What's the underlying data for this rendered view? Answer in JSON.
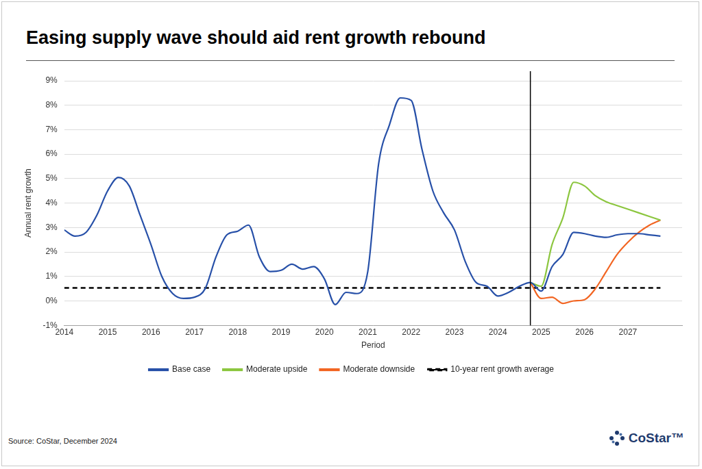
{
  "chart_data": {
    "type": "line",
    "title": "Easing supply wave should aid rent growth rebound",
    "y_label": "Annual rent growth",
    "x_label": "Period",
    "source": "Source: CoStar, December 2024",
    "logo": "CoStar™",
    "xlim": [
      2014,
      2028.25
    ],
    "xticks": [
      2014,
      2015,
      2016,
      2017,
      2018,
      2019,
      2020,
      2021,
      2022,
      2023,
      2024,
      2025,
      2026,
      2027
    ],
    "ylim": [
      -1,
      9
    ],
    "yticks": [
      {
        "value": -1,
        "label": "-1%"
      },
      {
        "value": 0,
        "label": "0%"
      },
      {
        "value": 1,
        "label": "1%"
      },
      {
        "value": 2,
        "label": "2%"
      },
      {
        "value": 3,
        "label": "3%"
      },
      {
        "value": 4,
        "label": "4%"
      },
      {
        "value": 5,
        "label": "5%"
      },
      {
        "value": 6,
        "label": "6%"
      },
      {
        "value": 7,
        "label": "7%"
      },
      {
        "value": 8,
        "label": "8%"
      },
      {
        "value": 9,
        "label": "9%"
      }
    ],
    "grid": "y",
    "legend": "bottom",
    "vlines": [
      2024.75
    ],
    "series": [
      {
        "name": "Base case",
        "color": "#2750a8",
        "line_style": "solid",
        "x": [
          2014,
          2014.25,
          2014.5,
          2014.75,
          2015,
          2015.25,
          2015.5,
          2015.75,
          2016,
          2016.25,
          2016.5,
          2016.75,
          2017,
          2017.25,
          2017.5,
          2017.75,
          2018,
          2018.25,
          2018.5,
          2018.75,
          2019,
          2019.25,
          2019.5,
          2019.75,
          2020,
          2020.25,
          2020.5,
          2020.75,
          2021,
          2021.25,
          2021.5,
          2021.75,
          2022,
          2022.25,
          2022.5,
          2022.75,
          2023,
          2023.25,
          2023.5,
          2023.75,
          2024,
          2024.25,
          2024.5,
          2024.75,
          2025,
          2025.25,
          2025.5,
          2025.75,
          2026,
          2026.25,
          2026.5,
          2026.75,
          2027,
          2027.25,
          2027.5,
          2027.75
        ],
        "values": [
          2.9,
          2.65,
          2.8,
          3.5,
          4.5,
          5.05,
          4.7,
          3.5,
          2.3,
          1.0,
          0.3,
          0.1,
          0.15,
          0.5,
          1.8,
          2.7,
          2.85,
          3.1,
          1.8,
          1.2,
          1.25,
          1.5,
          1.3,
          1.4,
          0.9,
          -0.15,
          0.35,
          0.3,
          1.2,
          5.6,
          7.2,
          8.3,
          8.2,
          6.2,
          4.5,
          3.6,
          2.9,
          1.6,
          0.75,
          0.6,
          0.2,
          0.35,
          0.6,
          0.75,
          0.4,
          1.4,
          1.9,
          2.8,
          2.75,
          2.65,
          2.6,
          2.7,
          2.75,
          2.75,
          2.7,
          2.65
        ]
      },
      {
        "name": "Moderate upside",
        "color": "#8cc63f",
        "line_style": "solid",
        "x": [
          2024.75,
          2025,
          2025.25,
          2025.5,
          2025.75,
          2026,
          2026.25,
          2026.5,
          2026.75,
          2027,
          2027.25,
          2027.5,
          2027.75
        ],
        "values": [
          0.75,
          0.6,
          2.3,
          3.4,
          4.85,
          4.7,
          4.3,
          4.05,
          3.9,
          3.75,
          3.6,
          3.45,
          3.3
        ]
      },
      {
        "name": "Moderate downside",
        "color": "#f26522",
        "line_style": "solid",
        "x": [
          2024.75,
          2025,
          2025.25,
          2025.5,
          2025.75,
          2026,
          2026.25,
          2026.5,
          2026.75,
          2027,
          2027.25,
          2027.5,
          2027.75
        ],
        "values": [
          0.75,
          0.1,
          0.15,
          -0.1,
          0.0,
          0.05,
          0.5,
          1.2,
          1.9,
          2.4,
          2.8,
          3.1,
          3.3
        ]
      },
      {
        "name": "10-year rent growth average",
        "color": "#000000",
        "line_style": "dashed",
        "x": [
          2014,
          2027.75
        ],
        "values": [
          0.53,
          0.53
        ]
      }
    ]
  }
}
